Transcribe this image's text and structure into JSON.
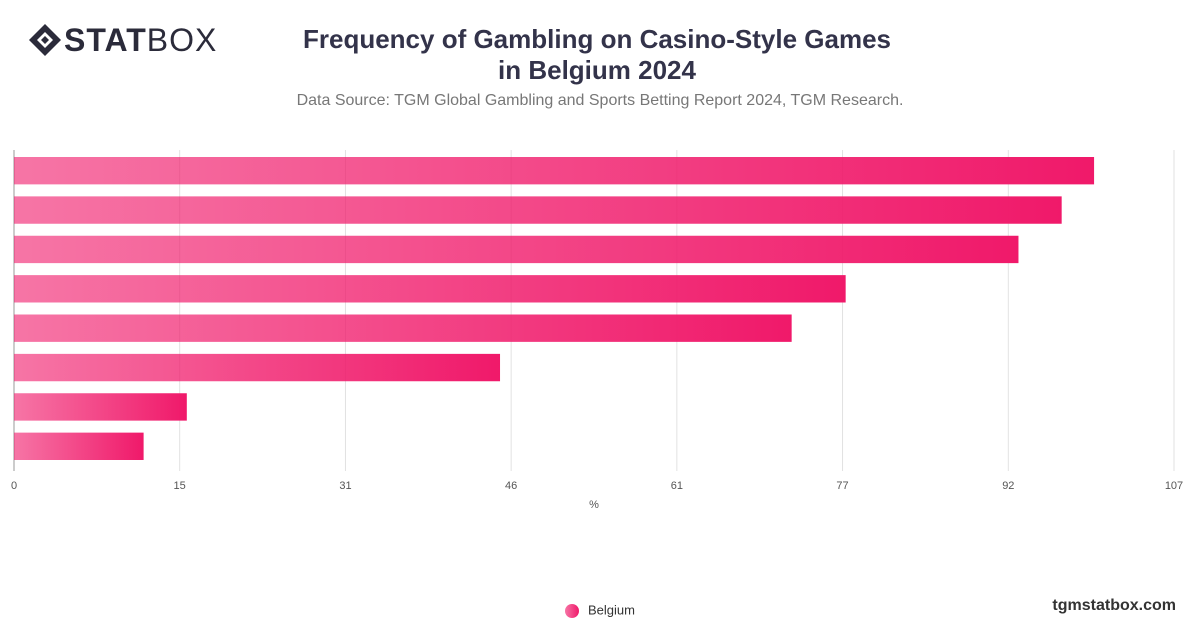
{
  "brand": {
    "bold": "STAT",
    "light": "BOX"
  },
  "site": "tgmstatbox.com",
  "chart_data": {
    "type": "bar",
    "orientation": "horizontal",
    "title": "Frequency of Gambling on Casino-Style Games in Belgium 2024",
    "subtitle": "Data Source: TGM Global Gambling and Sports Betting Report 2024, TGM Research.",
    "x_label": "%",
    "categories": [
      null,
      null,
      null,
      null,
      null,
      null,
      null,
      null
    ],
    "series": [
      {
        "name": "Belgium",
        "color": "#f0196a",
        "values": [
          100,
          97,
          93,
          77,
          72,
          45,
          16,
          12
        ]
      }
    ],
    "xlim": [
      0,
      107.4
    ],
    "xticks": [
      0,
      {
        "value": 15.34,
        "label": "15"
      },
      {
        "value": 30.69,
        "label": "31"
      },
      {
        "value": 46.03,
        "label": "46"
      },
      {
        "value": 61.37,
        "label": "61"
      },
      {
        "value": 76.71,
        "label": "77"
      },
      {
        "value": 92.06,
        "label": "92"
      },
      {
        "value": 107.4,
        "label": "107"
      }
    ],
    "grid": true
  }
}
